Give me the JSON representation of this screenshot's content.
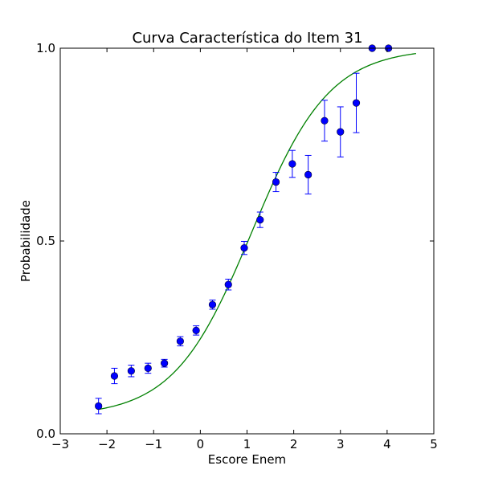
{
  "chart_data": {
    "type": "scatter",
    "title": "Curva Característica do Item 31",
    "xlabel": "Escore Enem",
    "ylabel": "Probabilidade",
    "xlim": [
      -3,
      5
    ],
    "ylim": [
      0,
      1
    ],
    "x_ticks": [
      -3,
      -2,
      -1,
      0,
      1,
      2,
      3,
      4,
      5
    ],
    "x_tick_labels": [
      "−3",
      "−2",
      "−1",
      "0",
      "1",
      "2",
      "3",
      "4",
      "5"
    ],
    "y_ticks": [
      0,
      0.5,
      1
    ],
    "y_tick_labels": [
      "0.0",
      "0.5",
      "1.0"
    ],
    "grid": false,
    "series": [
      {
        "kind": "observed-with-errorbars",
        "color": "#0000ff",
        "points": [
          {
            "x": -2.18,
            "y": 0.072,
            "err": 0.02
          },
          {
            "x": -1.84,
            "y": 0.15,
            "err": 0.02
          },
          {
            "x": -1.48,
            "y": 0.163,
            "err": 0.015
          },
          {
            "x": -1.12,
            "y": 0.17,
            "err": 0.013
          },
          {
            "x": -0.77,
            "y": 0.183,
            "err": 0.01
          },
          {
            "x": -0.43,
            "y": 0.24,
            "err": 0.012
          },
          {
            "x": -0.09,
            "y": 0.268,
            "err": 0.012
          },
          {
            "x": 0.26,
            "y": 0.335,
            "err": 0.012
          },
          {
            "x": 0.6,
            "y": 0.387,
            "err": 0.014
          },
          {
            "x": 0.94,
            "y": 0.482,
            "err": 0.017
          },
          {
            "x": 1.28,
            "y": 0.555,
            "err": 0.02
          },
          {
            "x": 1.62,
            "y": 0.653,
            "err": 0.025
          },
          {
            "x": 1.97,
            "y": 0.7,
            "err": 0.035
          },
          {
            "x": 2.31,
            "y": 0.672,
            "err": 0.05
          },
          {
            "x": 2.66,
            "y": 0.812,
            "err": 0.053
          },
          {
            "x": 3.0,
            "y": 0.783,
            "err": 0.065
          },
          {
            "x": 3.34,
            "y": 0.858,
            "err": 0.077
          },
          {
            "x": 3.68,
            "y": 1.0,
            "err": 0
          },
          {
            "x": 4.03,
            "y": 1.0,
            "err": 0
          }
        ]
      },
      {
        "kind": "fitted-curve",
        "color": "#008000",
        "model": "3PL logistic",
        "params": {
          "a": 1.2,
          "b": 1.1,
          "c": 0.045
        },
        "x_range": [
          -2.18,
          4.62
        ]
      }
    ]
  }
}
